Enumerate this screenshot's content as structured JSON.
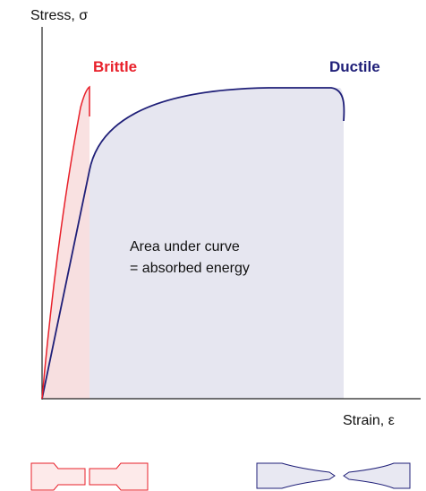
{
  "axes": {
    "y_label": "Stress, σ",
    "x_label": "Strain, ε"
  },
  "curves": [
    {
      "label": "Brittle"
    },
    {
      "label": "Ductile"
    }
  ],
  "annotation": {
    "lines": [
      "Area under curve",
      "= absorbed energy"
    ]
  }
}
